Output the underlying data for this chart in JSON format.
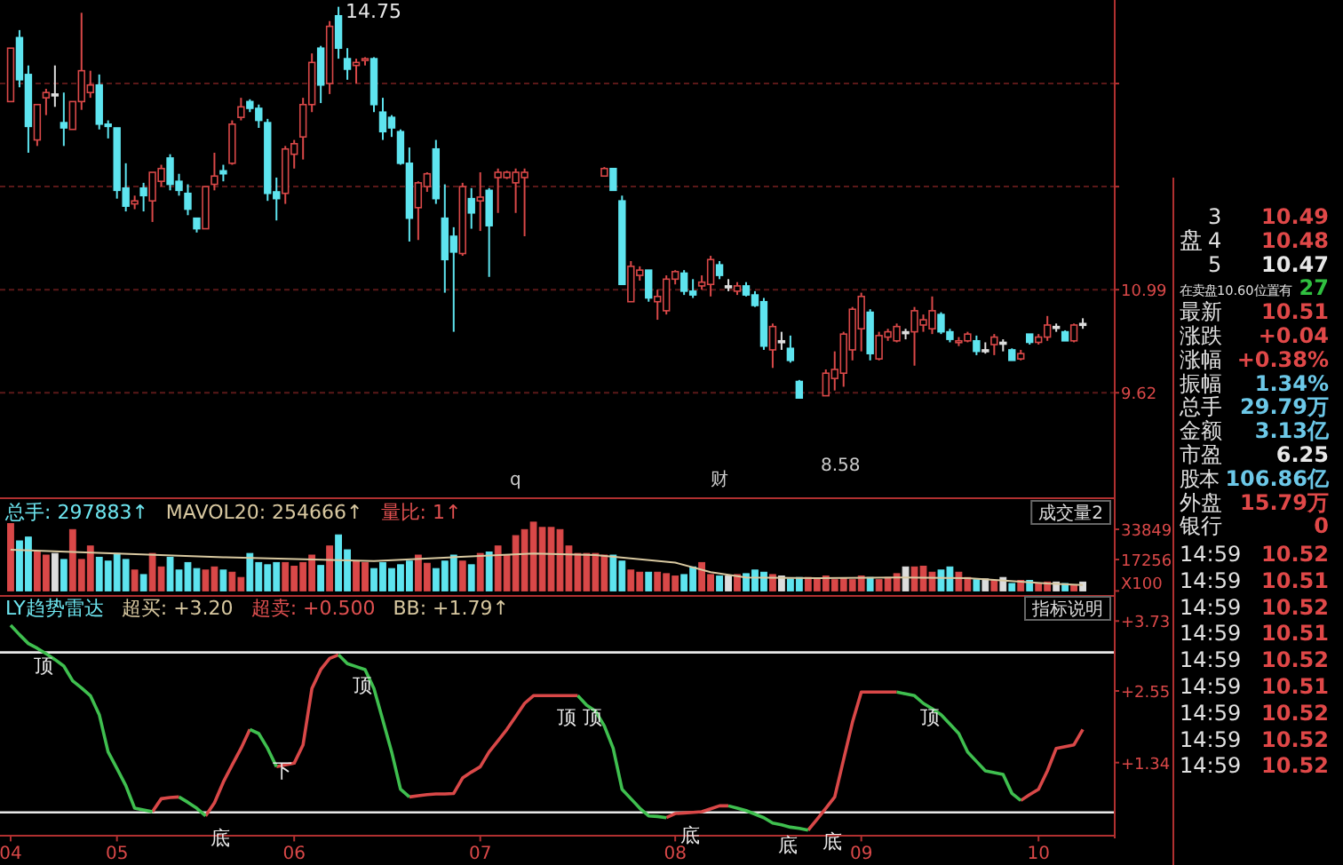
{
  "chart_data": [
    {
      "type": "candlestick",
      "categories": [
        null,
        null,
        null,
        null,
        null,
        null,
        null,
        null,
        null,
        null,
        null,
        null,
        null,
        null,
        null,
        null,
        null,
        null,
        null,
        null,
        null,
        null,
        null,
        null,
        null,
        null,
        null,
        null,
        null,
        null,
        null,
        null,
        null,
        null,
        null,
        null,
        null,
        null,
        null,
        null,
        null,
        null,
        null,
        null,
        null,
        null,
        null,
        null,
        null,
        null,
        null,
        null,
        null,
        null,
        null,
        null,
        null,
        null,
        null,
        null,
        null,
        null,
        null,
        null,
        null,
        null,
        null,
        null,
        null,
        null,
        null,
        null,
        null,
        null,
        null,
        null,
        null,
        null,
        null,
        null,
        null,
        null,
        null,
        null,
        null,
        null,
        null,
        null,
        null,
        null,
        null,
        null,
        null,
        null,
        null,
        null,
        null,
        null,
        null,
        null,
        null,
        null,
        null,
        null,
        null,
        null,
        null,
        null,
        null,
        null,
        null,
        null,
        null,
        null,
        null,
        null,
        null,
        null,
        null,
        null,
        null,
        null
      ],
      "ohlc": [
        [
          13.49,
          14.2,
          13.49,
          14.2
        ],
        [
          14.34,
          14.44,
          13.68,
          13.78
        ],
        [
          13.85,
          13.97,
          12.81,
          13.16
        ],
        [
          12.98,
          13.45,
          12.9,
          13.45
        ],
        [
          13.54,
          13.66,
          13.31,
          13.61
        ],
        [
          13.59,
          13.97,
          13.42,
          13.57
        ],
        [
          13.21,
          13.61,
          12.9,
          13.14
        ],
        [
          13.12,
          13.49,
          13.12,
          13.49
        ],
        [
          13.49,
          14.67,
          13.38,
          13.9
        ],
        [
          13.61,
          13.9,
          13.54,
          13.71
        ],
        [
          13.71,
          13.85,
          13.12,
          13.19
        ],
        [
          13.19,
          13.24,
          13.0,
          13.16
        ],
        [
          13.14,
          13.14,
          12.2,
          12.31
        ],
        [
          12.34,
          12.67,
          12.03,
          12.1
        ],
        [
          12.13,
          12.24,
          12.06,
          12.17
        ],
        [
          12.34,
          12.41,
          12.03,
          12.24
        ],
        [
          12.17,
          12.55,
          11.89,
          12.55
        ],
        [
          12.43,
          12.65,
          12.36,
          12.6
        ],
        [
          12.74,
          12.79,
          12.31,
          12.39
        ],
        [
          12.43,
          12.53,
          12.24,
          12.31
        ],
        [
          12.27,
          12.39,
          11.98,
          12.06
        ],
        [
          11.94,
          11.94,
          11.75,
          11.8
        ],
        [
          11.8,
          12.36,
          11.8,
          12.36
        ],
        [
          12.39,
          12.81,
          12.31,
          12.5
        ],
        [
          12.57,
          12.65,
          12.43,
          12.53
        ],
        [
          12.67,
          13.24,
          12.65,
          13.19
        ],
        [
          13.28,
          13.54,
          13.24,
          13.42
        ],
        [
          13.49,
          13.52,
          13.35,
          13.4
        ],
        [
          13.4,
          13.45,
          13.14,
          13.24
        ],
        [
          13.21,
          13.26,
          12.17,
          12.27
        ],
        [
          12.29,
          12.48,
          11.91,
          12.2
        ],
        [
          12.27,
          12.9,
          12.13,
          12.86
        ],
        [
          12.79,
          12.98,
          12.6,
          12.93
        ],
        [
          13.02,
          13.54,
          12.72,
          13.45
        ],
        [
          13.45,
          14.13,
          13.35,
          14.01
        ],
        [
          14.2,
          14.23,
          13.47,
          13.71
        ],
        [
          13.73,
          14.56,
          13.59,
          14.49
        ],
        [
          14.63,
          14.75,
          14.06,
          14.2
        ],
        [
          14.06,
          14.2,
          13.78,
          13.92
        ],
        [
          13.97,
          14.06,
          13.73,
          14.01
        ],
        [
          14.04,
          14.08,
          13.97,
          14.06
        ],
        [
          14.06,
          14.08,
          13.35,
          13.45
        ],
        [
          13.35,
          13.54,
          12.98,
          13.09
        ],
        [
          13.28,
          13.31,
          13.02,
          13.14
        ],
        [
          13.09,
          13.12,
          12.65,
          12.67
        ],
        [
          12.67,
          12.88,
          11.63,
          11.94
        ],
        [
          12.08,
          12.43,
          11.65,
          12.41
        ],
        [
          12.36,
          12.55,
          12.29,
          12.53
        ],
        [
          12.86,
          12.98,
          12.13,
          12.2
        ],
        [
          11.94,
          12.39,
          10.95,
          11.39
        ],
        [
          11.7,
          11.82,
          10.43,
          11.49
        ],
        [
          11.47,
          12.41,
          11.44,
          12.36
        ],
        [
          12.2,
          12.34,
          11.8,
          12.01
        ],
        [
          12.17,
          12.55,
          11.77,
          12.22
        ],
        [
          12.31,
          12.34,
          11.16,
          11.84
        ],
        [
          12.48,
          12.6,
          12.01,
          12.55
        ],
        [
          12.48,
          12.57,
          12.46,
          12.55
        ],
        [
          12.41,
          12.6,
          12.01,
          12.55
        ],
        [
          12.48,
          12.6,
          11.7,
          12.55
        ],
        null,
        null,
        null,
        null,
        null,
        null,
        null,
        null,
        [
          12.5,
          12.62,
          12.5,
          12.6
        ],
        [
          12.6,
          12.6,
          12.31,
          12.31
        ],
        [
          12.17,
          12.24,
          11.06,
          11.06
        ],
        [
          10.83,
          11.37,
          10.83,
          11.3
        ],
        [
          11.18,
          11.3,
          11.11,
          11.25
        ],
        [
          11.25,
          11.25,
          10.83,
          10.88
        ],
        [
          10.83,
          10.99,
          10.59,
          10.9
        ],
        [
          10.71,
          11.18,
          10.66,
          11.13
        ],
        [
          11.13,
          11.25,
          11.06,
          11.23
        ],
        [
          11.21,
          11.25,
          10.92,
          10.97
        ],
        [
          10.97,
          11.13,
          10.88,
          10.92
        ],
        [
          11.04,
          11.18,
          10.99,
          11.09
        ],
        [
          11.06,
          11.44,
          10.9,
          11.39
        ],
        [
          11.32,
          11.37,
          11.13,
          11.18
        ],
        [
          11.04,
          11.13,
          10.97,
          11.04
        ],
        [
          10.97,
          11.09,
          10.92,
          11.04
        ],
        [
          11.04,
          11.09,
          10.9,
          10.92
        ],
        [
          10.92,
          10.97,
          10.76,
          10.78
        ],
        [
          10.83,
          10.88,
          10.19,
          10.24
        ],
        [
          10.19,
          10.54,
          9.95,
          10.5
        ],
        [
          10.31,
          10.43,
          10.19,
          10.29
        ],
        [
          10.21,
          10.38,
          10.02,
          10.05
        ],
        [
          9.77,
          9.79,
          9.55,
          9.55
        ],
        null,
        null,
        [
          9.58,
          9.93,
          9.58,
          9.88
        ],
        [
          9.81,
          10.17,
          9.65,
          9.93
        ],
        [
          9.88,
          10.43,
          9.7,
          10.4
        ],
        [
          10.19,
          10.76,
          10.05,
          10.73
        ],
        [
          10.47,
          10.95,
          10.17,
          10.9
        ],
        [
          10.69,
          10.73,
          10.05,
          10.14
        ],
        [
          10.07,
          10.43,
          10.05,
          10.38
        ],
        [
          10.36,
          10.47,
          10.31,
          10.43
        ],
        [
          10.31,
          10.54,
          10.29,
          10.5
        ],
        [
          10.43,
          10.47,
          10.33,
          10.43
        ],
        [
          10.43,
          10.76,
          9.98,
          10.71
        ],
        [
          10.52,
          10.66,
          10.43,
          10.59
        ],
        [
          10.47,
          10.9,
          10.4,
          10.71
        ],
        [
          10.66,
          10.69,
          10.4,
          10.43
        ],
        [
          10.43,
          10.47,
          10.29,
          10.33
        ],
        [
          10.29,
          10.36,
          10.24,
          10.31
        ],
        [
          10.31,
          10.43,
          10.29,
          10.4
        ],
        [
          10.31,
          10.38,
          10.12,
          10.17
        ],
        [
          10.19,
          10.29,
          10.14,
          10.19
        ],
        [
          10.26,
          10.4,
          10.12,
          10.36
        ],
        [
          10.29,
          10.33,
          10.17,
          10.29
        ],
        [
          10.19,
          10.21,
          10.05,
          10.05
        ],
        [
          10.07,
          10.19,
          10.05,
          10.14
        ],
        [
          10.4,
          10.4,
          10.26,
          10.29
        ],
        [
          10.29,
          10.4,
          10.26,
          10.36
        ],
        [
          10.36,
          10.64,
          10.31,
          10.52
        ],
        [
          10.5,
          10.54,
          10.43,
          10.5
        ],
        [
          10.43,
          10.45,
          10.31,
          10.31
        ],
        [
          10.31,
          10.54,
          10.29,
          10.52
        ],
        [
          10.54,
          10.61,
          10.47,
          10.54
        ]
      ],
      "colors": [
        "#d94848",
        "#5ee4ef",
        "#5ee4ef",
        "#d94848",
        "#d94848",
        "#dddddd",
        "#5ee4ef",
        "#d94848",
        "#d94848",
        "#d94848",
        "#5ee4ef",
        "#5ee4ef",
        "#5ee4ef",
        "#5ee4ef",
        "#d94848",
        "#5ee4ef",
        "#d94848",
        "#d94848",
        "#5ee4ef",
        "#5ee4ef",
        "#5ee4ef",
        "#5ee4ef",
        "#d94848",
        "#d94848",
        "#5ee4ef",
        "#d94848",
        "#d94848",
        "#5ee4ef",
        "#5ee4ef",
        "#5ee4ef",
        "#5ee4ef",
        "#d94848",
        "#d94848",
        "#d94848",
        "#d94848",
        "#5ee4ef",
        "#d94848",
        "#5ee4ef",
        "#5ee4ef",
        "#d94848",
        "#d94848",
        "#5ee4ef",
        "#5ee4ef",
        "#5ee4ef",
        "#5ee4ef",
        "#5ee4ef",
        "#d94848",
        "#d94848",
        "#5ee4ef",
        "#5ee4ef",
        "#5ee4ef",
        "#d94848",
        "#5ee4ef",
        "#d94848",
        "#5ee4ef",
        "#d94848",
        "#d94848",
        "#d94848",
        "#d94848",
        null,
        null,
        null,
        null,
        null,
        null,
        null,
        null,
        "#d94848",
        "#5ee4ef",
        "#5ee4ef",
        "#d94848",
        "#d94848",
        "#5ee4ef",
        "#d94848",
        "#d94848",
        "#d94848",
        "#5ee4ef",
        "#5ee4ef",
        "#d94848",
        "#d94848",
        "#5ee4ef",
        "#dddddd",
        "#d94848",
        "#5ee4ef",
        "#5ee4ef",
        "#5ee4ef",
        "#d94848",
        "#dddddd",
        "#5ee4ef",
        "#5ee4ef",
        null,
        null,
        "#d94848",
        "#d94848",
        "#d94848",
        "#d94848",
        "#d94848",
        "#5ee4ef",
        "#d94848",
        "#d94848",
        "#d94848",
        "#dddddd",
        "#d94848",
        "#d94848",
        "#d94848",
        "#5ee4ef",
        "#5ee4ef",
        "#d94848",
        "#d94848",
        "#5ee4ef",
        "#dddddd",
        "#d94848",
        "#dddddd",
        "#5ee4ef",
        "#d94848",
        "#5ee4ef",
        "#d94848",
        "#d94848",
        "#dddddd",
        "#5ee4ef",
        "#d94848",
        "#dddddd"
      ],
      "value_labels": [
        null,
        null,
        null,
        null,
        null,
        null,
        null,
        null,
        null,
        null,
        null,
        null,
        null,
        null,
        null,
        null,
        null,
        null,
        null,
        null,
        null,
        null,
        null,
        null,
        null,
        null,
        null,
        null,
        null,
        null,
        null,
        null,
        null,
        null,
        null,
        null,
        null,
        "14.75",
        null,
        null,
        null,
        null,
        null,
        null,
        null,
        null,
        null,
        null,
        null,
        null,
        null,
        null,
        null,
        null,
        null,
        null,
        null,
        null,
        null,
        null,
        null,
        null,
        null,
        null,
        null,
        null,
        null,
        null,
        null,
        null,
        null,
        null,
        null,
        null,
        null,
        null,
        null,
        null,
        null,
        null,
        null,
        null,
        null,
        null,
        null,
        null,
        null,
        null,
        null,
        null,
        null,
        null,
        null,
        null,
        null,
        null,
        null,
        null,
        null,
        null,
        null,
        null,
        null,
        null,
        null,
        null,
        null,
        null,
        null,
        null,
        null,
        null,
        null,
        null,
        null,
        null,
        null,
        null,
        null,
        null,
        null,
        null
      ],
      "ylim": [
        8.23,
        14.84
      ],
      "yticks": [
        {
          "value": 13.73,
          "label": null
        },
        {
          "value": 12.36,
          "label": null
        },
        10.99,
        9.62
      ],
      "grid": "y",
      "tick_labels": "y",
      "annotations": [
        "8.58",
        "q",
        "财"
      ]
    },
    {
      "type": "bar",
      "title": "总手: 297883↑",
      "annotations": [
        "MAVOL20: 254666↑",
        "量比: 1↑",
        "成交量2"
      ],
      "categories": [
        null,
        null,
        null,
        null,
        null,
        null,
        null,
        null,
        null,
        null,
        null,
        null,
        null,
        null,
        null,
        null,
        null,
        null,
        null,
        null,
        null,
        null,
        null,
        null,
        null,
        null,
        null,
        null,
        null,
        null,
        null,
        null,
        null,
        null,
        null,
        null,
        null,
        null,
        null,
        null,
        null,
        null,
        null,
        null,
        null,
        null,
        null,
        null,
        null,
        null,
        null,
        null,
        null,
        null,
        null,
        null,
        null,
        null,
        null,
        null,
        null,
        null,
        null,
        null,
        null,
        null,
        null,
        null,
        null,
        null,
        null,
        null,
        null,
        null,
        null,
        null,
        null,
        null,
        null,
        null,
        null,
        null,
        null,
        null,
        null,
        null,
        null,
        null,
        null,
        null,
        null,
        null,
        null,
        null,
        null,
        null,
        null,
        null,
        null,
        null,
        null,
        null,
        null,
        null,
        null,
        null,
        null,
        null,
        null,
        null,
        null,
        null,
        null,
        null,
        null,
        null,
        null,
        null,
        null,
        null,
        null,
        null
      ],
      "series": [
        {
          "values": [
            37000,
            27500,
            29600,
            21400,
            19700,
            20600,
            17300,
            33700,
            17300,
            24700,
            18500,
            16400,
            20600,
            17300,
            11500,
            9000,
            20600,
            13200,
            18500,
            11500,
            15600,
            12300,
            11500,
            13200,
            11500,
            10300,
            7400,
            20600,
            15600,
            14400,
            15600,
            15600,
            13600,
            15600,
            19700,
            14000,
            24700,
            30800,
            22600,
            16400,
            15600,
            12300,
            15600,
            12300,
            14400,
            16400,
            19700,
            15200,
            12300,
            16400,
            19700,
            16400,
            14400,
            20600,
            21400,
            24700,
            19700,
            30400,
            33700,
            37800,
            34900,
            34900,
            33700,
            24700,
            20600,
            20600,
            20600,
            19700,
            19700,
            16400,
            11500,
            10300,
            10300,
            10300,
            9500,
            8200,
            9000,
            13200,
            15600,
            9000,
            8200,
            8200,
            9000,
            9500,
            11500,
            10300,
            9000,
            8200,
            6600,
            7400,
            7400,
            6600,
            8200,
            6200,
            7000,
            6200,
            8200,
            7400,
            6200,
            7400,
            9500,
            13200,
            13200,
            13600,
            10300,
            11500,
            13200,
            10300,
            7400,
            6200,
            6600,
            5800,
            7400,
            4100,
            5800,
            5800,
            4100,
            4900,
            4900,
            4100,
            3300,
            4900
          ],
          "colors": [
            "#d94848",
            "#5ee4ef",
            "#5ee4ef",
            "#d94848",
            "#d94848",
            "#dddddd",
            "#5ee4ef",
            "#d94848",
            "#d94848",
            "#d94848",
            "#5ee4ef",
            "#5ee4ef",
            "#5ee4ef",
            "#5ee4ef",
            "#d94848",
            "#5ee4ef",
            "#d94848",
            "#d94848",
            "#5ee4ef",
            "#5ee4ef",
            "#5ee4ef",
            "#5ee4ef",
            "#d94848",
            "#d94848",
            "#5ee4ef",
            "#d94848",
            "#d94848",
            "#5ee4ef",
            "#5ee4ef",
            "#5ee4ef",
            "#5ee4ef",
            "#d94848",
            "#d94848",
            "#d94848",
            "#d94848",
            "#5ee4ef",
            "#d94848",
            "#5ee4ef",
            "#5ee4ef",
            "#d94848",
            "#d94848",
            "#5ee4ef",
            "#5ee4ef",
            "#5ee4ef",
            "#5ee4ef",
            "#5ee4ef",
            "#d94848",
            "#d94848",
            "#5ee4ef",
            "#5ee4ef",
            "#5ee4ef",
            "#d94848",
            "#5ee4ef",
            "#d94848",
            "#5ee4ef",
            "#d94848",
            "#d94848",
            "#d94848",
            "#d94848",
            "#d94848",
            "#d94848",
            "#d94848",
            "#d94848",
            "#d94848",
            "#d94848",
            "#d94848",
            "#d94848",
            "#d94848",
            "#5ee4ef",
            "#5ee4ef",
            "#d94848",
            "#d94848",
            "#5ee4ef",
            "#d94848",
            "#d94848",
            "#d94848",
            "#5ee4ef",
            "#5ee4ef",
            "#d94848",
            "#d94848",
            "#5ee4ef",
            "#dddddd",
            "#d94848",
            "#5ee4ef",
            "#5ee4ef",
            "#5ee4ef",
            "#d94848",
            "#dddddd",
            "#5ee4ef",
            "#5ee4ef",
            "#d94848",
            "#d94848",
            "#d94848",
            "#d94848",
            "#d94848",
            "#d94848",
            "#d94848",
            "#5ee4ef",
            "#d94848",
            "#d94848",
            "#d94848",
            "#dddddd",
            "#d94848",
            "#d94848",
            "#d94848",
            "#5ee4ef",
            "#5ee4ef",
            "#d94848",
            "#d94848",
            "#5ee4ef",
            "#dddddd",
            "#d94848",
            "#dddddd",
            "#5ee4ef",
            "#d94848",
            "#5ee4ef",
            "#d94848",
            "#d94848",
            "#dddddd",
            "#5ee4ef",
            "#d94848",
            "#dddddd"
          ]
        },
        {
          "type": "line",
          "color": "#d8c8a0",
          "values": [
            22600,
            null,
            null,
            null,
            null,
            null,
            null,
            21400,
            null,
            null,
            null,
            null,
            null,
            null,
            null,
            null,
            null,
            null,
            null,
            null,
            null,
            null,
            null,
            null,
            18500,
            null,
            null,
            null,
            null,
            null,
            null,
            null,
            null,
            null,
            null,
            null,
            null,
            null,
            null,
            null,
            null,
            16400,
            null,
            null,
            null,
            null,
            null,
            null,
            null,
            null,
            null,
            null,
            null,
            null,
            null,
            null,
            null,
            null,
            null,
            20600,
            null,
            null,
            null,
            null,
            null,
            null,
            19700,
            null,
            null,
            null,
            null,
            null,
            null,
            null,
            null,
            15600,
            null,
            null,
            null,
            10300,
            null,
            null,
            null,
            7400,
            null,
            null,
            null,
            null,
            null,
            null,
            null,
            7000,
            null,
            null,
            null,
            null,
            null,
            null,
            null,
            null,
            7400,
            null,
            null,
            null,
            null,
            null,
            null,
            null,
            7000,
            null,
            null,
            null,
            null,
            null,
            null,
            null,
            null,
            4100,
            null,
            null,
            null,
            3300
          ]
        }
      ],
      "ylim": [
        0,
        52000
      ],
      "yticks": [
        {
          "value": 0,
          "label": "X100"
        },
        17256,
        33849
      ],
      "tick_labels": "y"
    },
    {
      "type": "line",
      "title": "LY趋势雷达",
      "annotations": [
        "超买: +3.20",
        "超卖: +0.500",
        "BB: +1.79↑",
        "指标说明"
      ],
      "categories": [
        "04",
        null,
        null,
        null,
        null,
        null,
        null,
        null,
        null,
        null,
        null,
        null,
        "05",
        null,
        null,
        null,
        null,
        null,
        null,
        null,
        null,
        null,
        null,
        null,
        null,
        null,
        null,
        null,
        null,
        null,
        null,
        null,
        "06",
        null,
        null,
        null,
        null,
        null,
        null,
        null,
        null,
        null,
        null,
        null,
        null,
        null,
        null,
        null,
        null,
        null,
        null,
        null,
        null,
        "07",
        null,
        null,
        null,
        null,
        null,
        null,
        null,
        null,
        null,
        null,
        null,
        null,
        null,
        null,
        null,
        null,
        null,
        null,
        null,
        null,
        null,
        "08",
        null,
        null,
        null,
        null,
        null,
        null,
        null,
        null,
        null,
        null,
        null,
        null,
        null,
        null,
        null,
        null,
        null,
        null,
        null,
        null,
        "09",
        null,
        null,
        null,
        null,
        null,
        null,
        null,
        null,
        null,
        null,
        null,
        null,
        null,
        null,
        null,
        null,
        null,
        null,
        null,
        "10",
        null,
        null,
        null,
        null,
        null
      ],
      "series": [
        {
          "color": "#3fbf4f",
          "values": [
            3.66,
            3.5,
            3.35,
            3.27,
            3.18,
            3.08,
            2.97,
            2.72,
            2.6,
            2.47,
            2.15,
            1.52,
            1.24,
            0.95,
            0.57,
            0.54,
            0.51,
            null,
            null,
            0.76,
            0.67,
            0.57,
            0.44,
            null,
            null,
            null,
            null,
            1.9,
            1.83,
            1.58,
            1.27,
            null,
            null,
            null,
            null,
            null,
            null,
            3.16,
            3.01,
            2.96,
            2.91,
            2.59,
            2.06,
            1.52,
            0.89,
            0.76,
            null,
            null,
            null,
            null,
            null,
            null,
            null,
            null,
            null,
            null,
            null,
            null,
            null,
            null,
            null,
            null,
            null,
            null,
            2.47,
            2.31,
            2.21,
            1.96,
            1.58,
            0.89,
            0.73,
            0.57,
            0.44,
            0.43,
            0.41,
            null,
            null,
            null,
            null,
            null,
            null,
            0.61,
            0.57,
            0.53,
            0.47,
            0.41,
            0.32,
            0.29,
            0.25,
            0.23,
            0.2,
            null,
            null,
            null,
            null,
            null,
            null,
            null,
            null,
            null,
            2.53,
            2.5,
            2.47,
            2.34,
            2.25,
            2.15,
            1.99,
            1.83,
            1.52,
            1.36,
            1.2,
            1.17,
            1.14,
            0.82,
            0.7,
            null,
            null,
            null,
            null,
            null,
            null,
            null
          ],
          "value_labels": [
            null,
            null,
            "顶",
            null,
            null,
            null,
            null,
            null,
            null,
            null,
            null,
            null,
            null,
            null,
            null,
            null,
            null,
            null,
            null,
            null,
            null,
            null,
            "底",
            null,
            null,
            null,
            null,
            null,
            null,
            "下",
            null,
            null,
            null,
            null,
            null,
            null,
            null,
            null,
            "顶",
            null,
            null,
            null,
            null,
            null,
            null,
            null,
            null,
            null,
            null,
            null,
            null,
            null,
            null,
            null,
            null,
            null,
            null,
            null,
            null,
            null,
            null,
            null,
            null,
            null,
            "顶",
            null,
            null,
            null,
            null,
            null,
            null,
            null,
            null,
            null,
            null,
            null,
            null,
            null,
            null,
            null,
            null,
            null,
            null,
            null,
            null,
            null,
            "底",
            null,
            null,
            null,
            null,
            null,
            null,
            null,
            null,
            null,
            null,
            null,
            null,
            null,
            null,
            null,
            "顶",
            null,
            null,
            null,
            null,
            null,
            null,
            null,
            null,
            null,
            null,
            null,
            null,
            null,
            null,
            null,
            null,
            null,
            null,
            null
          ]
        },
        {
          "color": "#d94848",
          "values": [
            null,
            null,
            null,
            null,
            null,
            null,
            null,
            null,
            null,
            null,
            null,
            null,
            null,
            null,
            null,
            null,
            0.51,
            0.73,
            0.75,
            0.76,
            null,
            null,
            0.44,
            0.66,
            1.01,
            1.3,
            1.58,
            1.9,
            null,
            null,
            1.27,
            1.3,
            1.33,
            1.64,
            2.59,
            2.91,
            3.1,
            3.16,
            null,
            null,
            null,
            null,
            null,
            null,
            null,
            0.76,
            0.78,
            0.8,
            0.81,
            0.81,
            0.82,
            1.08,
            1.18,
            1.27,
            1.52,
            1.71,
            1.9,
            2.12,
            2.34,
            2.47,
            2.47,
            2.47,
            2.47,
            2.47,
            2.47,
            null,
            null,
            null,
            null,
            null,
            null,
            null,
            null,
            null,
            0.41,
            0.48,
            0.49,
            0.5,
            0.51,
            0.56,
            0.61,
            0.61,
            null,
            null,
            null,
            null,
            null,
            null,
            null,
            null,
            0.2,
            0.38,
            0.57,
            0.76,
            1.39,
            2.02,
            2.53,
            2.53,
            2.53,
            2.53,
            2.53,
            null,
            null,
            null,
            null,
            null,
            null,
            null,
            null,
            null,
            null,
            null,
            null,
            null,
            0.7,
            0.8,
            0.89,
            1.2,
            1.58,
            1.61,
            1.64,
            1.9
          ],
          "value_labels": [
            null,
            null,
            null,
            null,
            null,
            null,
            null,
            null,
            null,
            null,
            null,
            null,
            null,
            null,
            null,
            null,
            null,
            null,
            null,
            null,
            null,
            null,
            null,
            null,
            null,
            null,
            null,
            null,
            null,
            null,
            null,
            null,
            null,
            null,
            null,
            null,
            null,
            null,
            null,
            null,
            null,
            null,
            null,
            null,
            null,
            null,
            null,
            null,
            null,
            null,
            null,
            null,
            null,
            null,
            null,
            null,
            null,
            null,
            null,
            null,
            null,
            "顶",
            null,
            null,
            null,
            null,
            null,
            null,
            null,
            null,
            null,
            null,
            null,
            null,
            null,
            "底",
            null,
            null,
            null,
            null,
            null,
            null,
            null,
            null,
            null,
            null,
            null,
            null,
            null,
            null,
            null,
            "底",
            null,
            null,
            null,
            null,
            null,
            null,
            null,
            null,
            null,
            null,
            null,
            null,
            null,
            null,
            null,
            null,
            null,
            null,
            null,
            null,
            null,
            null,
            null,
            null,
            null,
            null,
            null,
            null,
            null,
            null
          ]
        }
      ],
      "ref_lines": [
        {
          "axis": "y",
          "value": 3.2,
          "color": "#e8e8e8"
        },
        {
          "axis": "y",
          "value": 0.5,
          "color": "#e8e8e8"
        }
      ],
      "ylim": [
        0.1,
        4.1
      ],
      "yticks": [
        {
          "value": 3.73,
          "label": "+3.73"
        },
        {
          "value": 2.55,
          "label": "+2.55"
        },
        {
          "value": 1.34,
          "label": "+1.34"
        }
      ]
    },
    {
      "type": "other",
      "ylabel": "盘",
      "annotations": [
        "3 10.49",
        "4 10.48",
        "5 10.47",
        "在卖盘10.60位置有 27",
        "最新 10.51",
        "涨跌 +0.04",
        "涨幅 +0.38%",
        "振幅 1.34%",
        "总手 29.79万",
        "金额 3.13亿",
        "市盈 6.25",
        "股本 106.86亿",
        "外盘 15.79万",
        "银行 0"
      ],
      "colors": [
        "#e04848",
        "#e04848",
        "#e8e8e8",
        "#30c040",
        "#e04848",
        "#e04848",
        "#e04848",
        "#6cc8e8",
        "#6cc8e8",
        "#6cc8e8",
        "#e8e8e8",
        "#6cc8e8",
        "#e04848",
        "#e04848"
      ]
    },
    {
      "type": "other",
      "annotations": [
        "14:59 10.52",
        "14:59 10.51",
        "14:59 10.52",
        "14:59 10.51",
        "14:59 10.52",
        "14:59 10.51",
        "14:59 10.52",
        "14:59 10.52",
        "14:59 10.52"
      ],
      "colors": [
        "#e04848",
        "#e04848",
        "#e04848",
        "#e04848",
        "#e04848",
        "#e04848",
        "#e04848",
        "#e04848",
        "#e04848"
      ]
    }
  ]
}
